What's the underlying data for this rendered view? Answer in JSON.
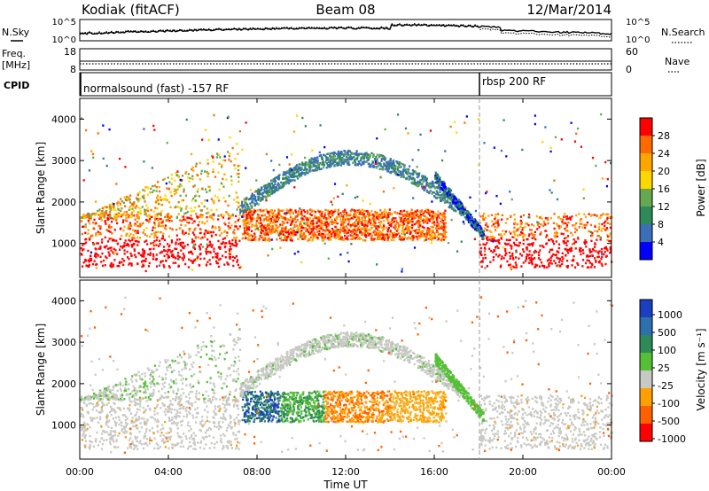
{
  "header": {
    "station": "Kodiak (fitACF)",
    "beam": "Beam 08",
    "date": "12/Mar/2014"
  },
  "noise_panel": {
    "left_label": "N.Sky",
    "right_label": "N.Search",
    "ticks_left": [
      "10^5",
      "10^0"
    ],
    "ticks_right": [
      "10^5",
      "10^0"
    ]
  },
  "freq_panel": {
    "left_label_line1": "Freq.",
    "left_label_line2": "[MHz]",
    "right_label": "Nave",
    "ticks_left": [
      "18",
      "8"
    ],
    "ticks_right": [
      "60",
      "0"
    ]
  },
  "cpid": {
    "label": "CPID",
    "segments": [
      {
        "text": "normalsound (fast) -157 RF",
        "start_hour": 0
      },
      {
        "text": "rbsp 200 RF",
        "start_hour": 18
      }
    ]
  },
  "chart_data": [
    {
      "type": "heatmap",
      "name": "power",
      "ylabel": "Slant Range [km]",
      "ylim": [
        180,
        4500
      ],
      "yticks": [
        "1000",
        "2000",
        "3000",
        "4000"
      ],
      "colorbar_label": "Power [dB]",
      "colorbar_ticks": [
        "4",
        "8",
        "12",
        "16",
        "20",
        "24",
        "28"
      ],
      "colors": [
        "#0000ff",
        "#3b6fb8",
        "#2e8b57",
        "#66a850",
        "#ffd700",
        "#ffa500",
        "#ff6a00",
        "#ff0000"
      ]
    },
    {
      "type": "heatmap",
      "name": "velocity",
      "ylabel": "Slant Range [km]",
      "ylim": [
        180,
        4500
      ],
      "yticks": [
        "1000",
        "2000",
        "3000",
        "4000"
      ],
      "colorbar_label": "Velocity [m s⁻¹]",
      "colorbar_ticks": [
        "1000",
        "500",
        "100",
        "25",
        "-25",
        "-100",
        "-500",
        "-1000"
      ],
      "colors": [
        "#1a3fbf",
        "#2e6fb0",
        "#2e8b57",
        "#55c035",
        "#c8c8c4",
        "#ffa000",
        "#ff6000",
        "#ff0000"
      ]
    }
  ],
  "x_axis": {
    "label": "Time UT",
    "ticks": [
      "00:00",
      "04:00",
      "08:00",
      "12:00",
      "16:00",
      "20:00",
      "00:00"
    ],
    "range_hours": [
      0,
      24
    ]
  }
}
